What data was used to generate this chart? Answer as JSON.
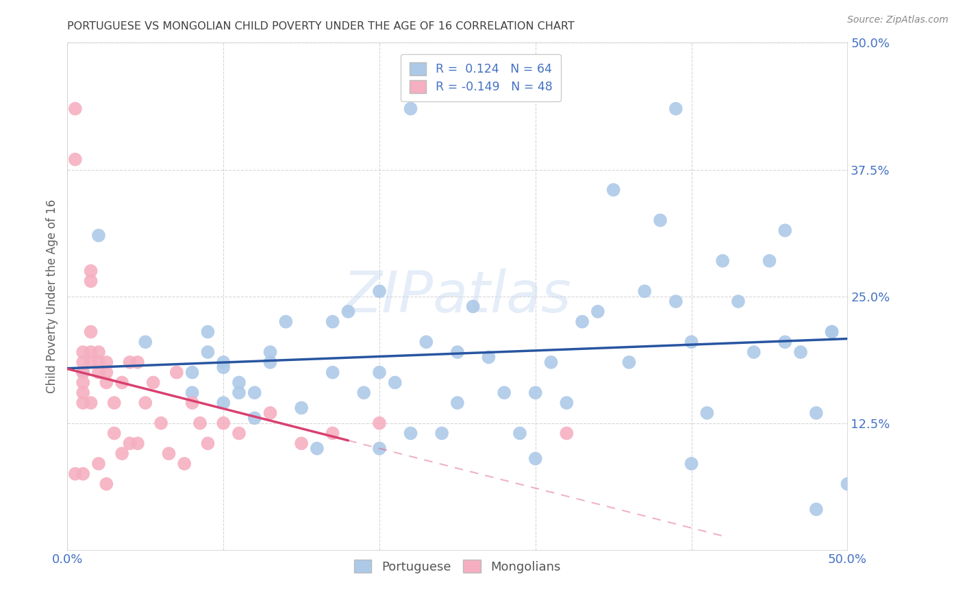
{
  "title": "PORTUGUESE VS MONGOLIAN CHILD POVERTY UNDER THE AGE OF 16 CORRELATION CHART",
  "source": "Source: ZipAtlas.com",
  "ylabel": "Child Poverty Under the Age of 16",
  "xlim": [
    0.0,
    0.5
  ],
  "ylim": [
    0.0,
    0.5
  ],
  "xticks": [
    0.0,
    0.1,
    0.2,
    0.3,
    0.4,
    0.5
  ],
  "yticks": [
    0.0,
    0.125,
    0.25,
    0.375,
    0.5
  ],
  "portuguese_color": "#adc9e8",
  "mongolian_color": "#f5afc0",
  "portuguese_line_color": "#2855a0",
  "mongolian_line_color": "#d94070",
  "portuguese_x": [
    0.01,
    0.02,
    0.05,
    0.08,
    0.09,
    0.1,
    0.1,
    0.11,
    0.12,
    0.12,
    0.13,
    0.14,
    0.15,
    0.16,
    0.17,
    0.18,
    0.19,
    0.2,
    0.2,
    0.21,
    0.22,
    0.23,
    0.24,
    0.25,
    0.26,
    0.27,
    0.28,
    0.29,
    0.3,
    0.31,
    0.32,
    0.33,
    0.34,
    0.35,
    0.36,
    0.37,
    0.38,
    0.39,
    0.4,
    0.41,
    0.42,
    0.43,
    0.44,
    0.45,
    0.46,
    0.47,
    0.48,
    0.49,
    0.5,
    0.22,
    0.1,
    0.09,
    0.08,
    0.11,
    0.13,
    0.17,
    0.2,
    0.25,
    0.3,
    0.39,
    0.46,
    0.48,
    0.49,
    0.4
  ],
  "portuguese_y": [
    0.175,
    0.31,
    0.205,
    0.155,
    0.195,
    0.145,
    0.18,
    0.155,
    0.13,
    0.155,
    0.185,
    0.225,
    0.14,
    0.1,
    0.175,
    0.235,
    0.155,
    0.1,
    0.255,
    0.165,
    0.115,
    0.205,
    0.115,
    0.145,
    0.24,
    0.19,
    0.155,
    0.115,
    0.09,
    0.185,
    0.145,
    0.225,
    0.235,
    0.355,
    0.185,
    0.255,
    0.325,
    0.245,
    0.085,
    0.135,
    0.285,
    0.245,
    0.195,
    0.285,
    0.205,
    0.195,
    0.04,
    0.215,
    0.065,
    0.435,
    0.185,
    0.215,
    0.175,
    0.165,
    0.195,
    0.225,
    0.175,
    0.195,
    0.155,
    0.435,
    0.315,
    0.135,
    0.215,
    0.205
  ],
  "mongolian_x": [
    0.005,
    0.005,
    0.005,
    0.01,
    0.01,
    0.01,
    0.01,
    0.01,
    0.01,
    0.01,
    0.015,
    0.015,
    0.015,
    0.015,
    0.015,
    0.015,
    0.02,
    0.02,
    0.02,
    0.02,
    0.025,
    0.025,
    0.025,
    0.025,
    0.03,
    0.03,
    0.035,
    0.035,
    0.04,
    0.04,
    0.045,
    0.045,
    0.05,
    0.055,
    0.06,
    0.065,
    0.07,
    0.075,
    0.08,
    0.085,
    0.09,
    0.1,
    0.11,
    0.13,
    0.15,
    0.17,
    0.2,
    0.32
  ],
  "mongolian_y": [
    0.435,
    0.385,
    0.075,
    0.175,
    0.185,
    0.195,
    0.165,
    0.155,
    0.145,
    0.075,
    0.275,
    0.265,
    0.215,
    0.195,
    0.185,
    0.145,
    0.195,
    0.185,
    0.175,
    0.085,
    0.185,
    0.175,
    0.165,
    0.065,
    0.145,
    0.115,
    0.165,
    0.095,
    0.185,
    0.105,
    0.185,
    0.105,
    0.145,
    0.165,
    0.125,
    0.095,
    0.175,
    0.085,
    0.145,
    0.125,
    0.105,
    0.125,
    0.115,
    0.135,
    0.105,
    0.115,
    0.125,
    0.115
  ],
  "watermark": "ZIPatlas",
  "background_color": "#ffffff",
  "grid_color": "#cccccc",
  "title_color": "#404040",
  "source_color": "#888888",
  "axis_label_color": "#606060",
  "tick_color": "#4472c4",
  "legend_text_color": "#4472c4"
}
